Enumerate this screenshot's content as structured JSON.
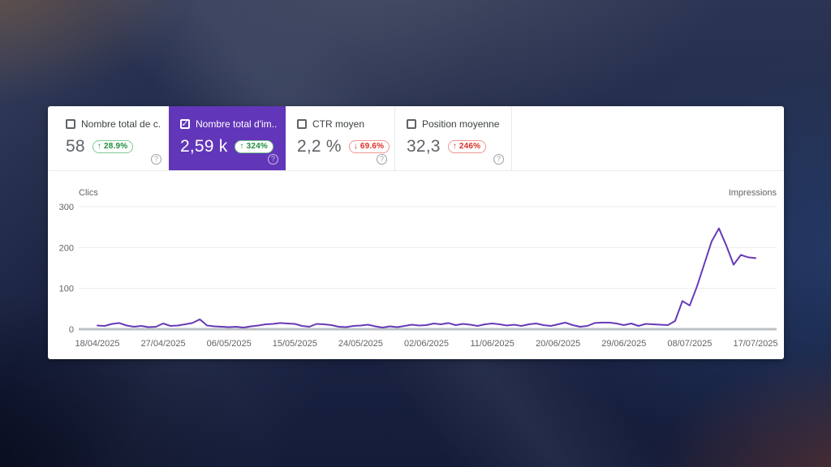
{
  "colors": {
    "accent_purple": "#6236b9",
    "line_purple": "#673ab7",
    "positive_green": "#1e8e3e",
    "negative_red": "#d93025"
  },
  "icons": {
    "checkbox_check_glyph": "✓",
    "help_glyph": "?"
  },
  "cards": [
    {
      "label": "Nombre total de c...",
      "value": "58",
      "delta": "↑ 28.9%",
      "delta_color": "green",
      "selected": false
    },
    {
      "label": "Nombre total d'im...",
      "value": "2,59 k",
      "delta": "↑ 324%",
      "delta_color": "green",
      "selected": true
    },
    {
      "label": "CTR moyen",
      "value": "2,2 %",
      "delta": "↓ 69.6%",
      "delta_color": "red",
      "selected": false
    },
    {
      "label": "Position moyenne",
      "value": "32,3",
      "delta": "↑ 246%",
      "delta_color": "red",
      "selected": false
    }
  ],
  "chart_data": {
    "type": "line",
    "left_axis_label": "Clics",
    "right_axis_label": "Impressions",
    "ylim": [
      0,
      300
    ],
    "y_ticks": [
      300,
      200,
      100,
      0
    ],
    "grid": true,
    "x_tick_labels": [
      "18/04/2025",
      "27/04/2025",
      "06/05/2025",
      "15/05/2025",
      "24/05/2025",
      "02/06/2025",
      "11/06/2025",
      "20/06/2025",
      "29/06/2025",
      "08/07/2025",
      "17/07/2025"
    ],
    "x_start": "18/04/2025",
    "x_end": "17/07/2025",
    "series": [
      {
        "name": "Impressions",
        "color": "#673ab7",
        "values": [
          9,
          8,
          13,
          15,
          9,
          6,
          8,
          5,
          6,
          14,
          8,
          9,
          12,
          15,
          24,
          9,
          7,
          6,
          5,
          6,
          4,
          7,
          9,
          12,
          13,
          15,
          14,
          13,
          8,
          6,
          13,
          12,
          10,
          6,
          5,
          8,
          9,
          11,
          7,
          4,
          7,
          5,
          8,
          11,
          9,
          10,
          14,
          12,
          15,
          10,
          13,
          11,
          8,
          12,
          14,
          12,
          9,
          11,
          8,
          12,
          14,
          10,
          8,
          12,
          16,
          10,
          6,
          8,
          15,
          16,
          16,
          14,
          10,
          14,
          8,
          13,
          12,
          11,
          10,
          20,
          69,
          58,
          105,
          160,
          215,
          247,
          205,
          158,
          182,
          176,
          174
        ]
      }
    ]
  }
}
